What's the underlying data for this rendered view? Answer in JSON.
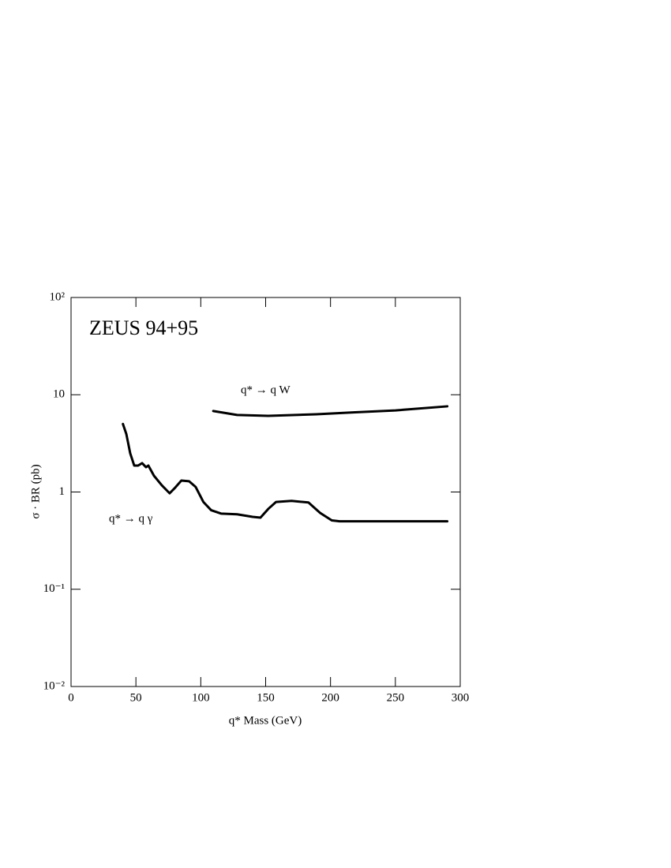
{
  "chart_data": {
    "type": "line",
    "title": "ZEUS 94+95",
    "x_label": "q* Mass (GeV)",
    "y_label": "σ · BR (pb)",
    "log_y": true,
    "xlim": [
      0,
      300
    ],
    "xticks": [
      0,
      50,
      100,
      150,
      200,
      250,
      300
    ],
    "ylim": [
      0.01,
      100
    ],
    "yticks": [
      {
        "value": 0.01,
        "label": "10⁻²"
      },
      {
        "value": 0.1,
        "label": "10⁻¹"
      },
      1,
      10,
      {
        "value": 100,
        "label": "10²"
      }
    ],
    "series": [
      {
        "name": "q* → q γ",
        "color": "#000000",
        "x": [
          40,
          42.6,
          45.6,
          48.7,
          51.7,
          54.8,
          57.8,
          59.6,
          63.9,
          70,
          76,
          80.3,
          85,
          91,
          96,
          102,
          108,
          115.6,
          128,
          140,
          146,
          152,
          158,
          170,
          183,
          192,
          201,
          207,
          290
        ],
        "values": [
          5.0,
          3.95,
          2.5,
          1.87,
          1.87,
          1.98,
          1.8,
          1.87,
          1.47,
          1.17,
          0.97,
          1.11,
          1.31,
          1.29,
          1.13,
          0.79,
          0.65,
          0.6,
          0.59,
          0.555,
          0.545,
          0.67,
          0.79,
          0.81,
          0.78,
          0.61,
          0.51,
          0.5,
          0.5
        ]
      },
      {
        "name": "q* → q W",
        "color": "#000000",
        "x": [
          109.6,
          128,
          152,
          189,
          219,
          250,
          290
        ],
        "values": [
          6.8,
          6.2,
          6.07,
          6.3,
          6.6,
          6.9,
          7.6
        ]
      }
    ]
  }
}
